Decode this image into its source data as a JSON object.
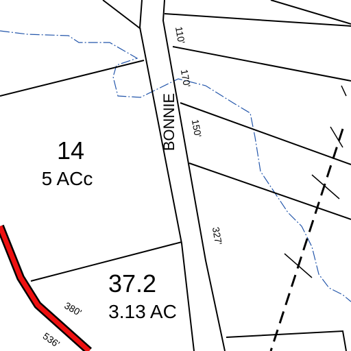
{
  "parcels": [
    {
      "number": "14",
      "area": "5 ACc"
    },
    {
      "number": "37.2",
      "area": "3.13 AC"
    }
  ],
  "road": {
    "name": "BONNIE"
  },
  "dimensions": [
    "110'",
    "170'",
    "150'",
    "327'",
    "380'",
    "536'"
  ]
}
